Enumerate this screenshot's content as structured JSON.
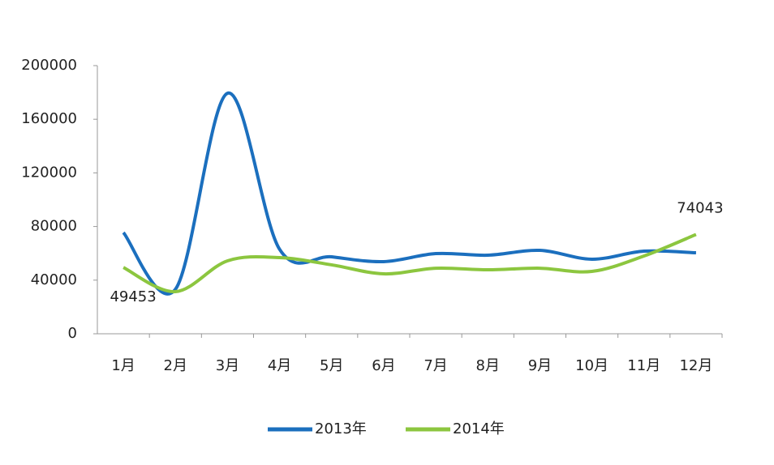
{
  "chart_data": {
    "type": "line",
    "categories": [
      "1月",
      "2月",
      "3月",
      "4月",
      "5月",
      "6月",
      "7月",
      "8月",
      "9月",
      "10月",
      "11月",
      "12月"
    ],
    "series": [
      {
        "name": "2013年",
        "color": "#1b6fbe",
        "values": [
          75500,
          33200,
          179400,
          63000,
          57400,
          53800,
          59800,
          58600,
          62200,
          55600,
          61600,
          60400
        ]
      },
      {
        "name": "2014年",
        "color": "#8cc63f",
        "values": [
          49453,
          31400,
          54400,
          56800,
          51400,
          44700,
          48900,
          47700,
          48900,
          46500,
          58000,
          74043
        ],
        "value_labels": [
          49453,
          null,
          null,
          null,
          null,
          null,
          null,
          null,
          null,
          null,
          null,
          74043
        ]
      }
    ],
    "ylim": [
      0,
      200000
    ],
    "yticks": [
      0,
      40000,
      80000,
      120000,
      160000,
      200000
    ],
    "grid": false,
    "smooth": true,
    "legend": "bottom"
  }
}
